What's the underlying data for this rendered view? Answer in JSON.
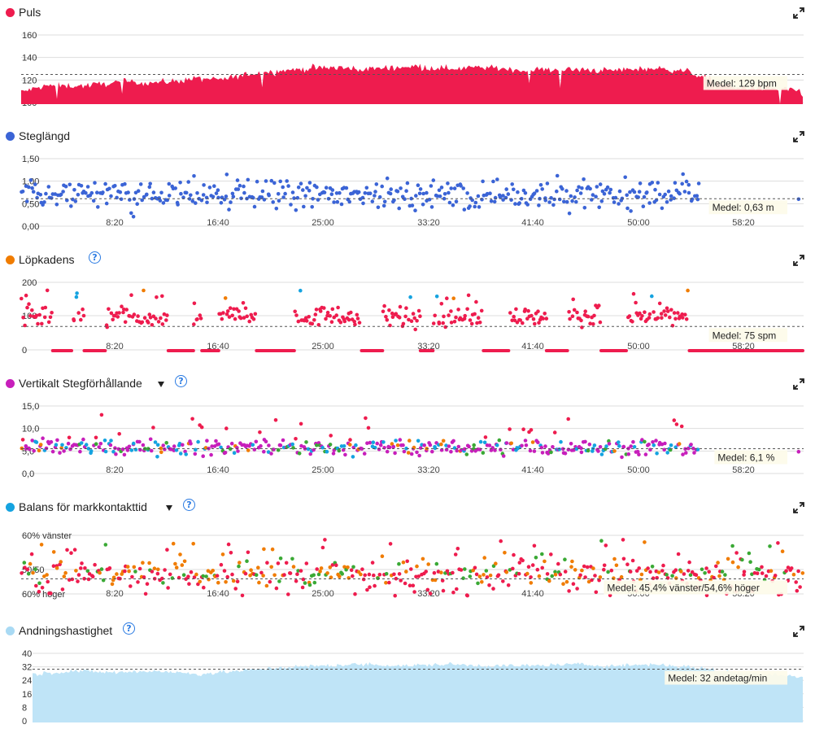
{
  "x_ticks": [
    "8:20",
    "16:40",
    "25:00",
    "33:20",
    "41:40",
    "50:00",
    "58:20"
  ],
  "panels": [
    {
      "id": "puls",
      "title": "Puls",
      "color": "#ee1c4e",
      "has_help": false,
      "has_dropdown": false,
      "y_ticks": [
        "160",
        "140",
        "120",
        "100"
      ],
      "mean_label": "Medel: 129 bpm",
      "chart_data": {
        "type": "area",
        "series": [
          {
            "name": "Puls",
            "color": "#ee1c4e"
          }
        ],
        "ylim": [
          100,
          170
        ],
        "mean": 129,
        "x_range_seconds": [
          0,
          3720
        ],
        "y_profile": [
          [
            0,
            112
          ],
          [
            120,
            118
          ],
          [
            300,
            118
          ],
          [
            500,
            122
          ],
          [
            600,
            121
          ],
          [
            700,
            122
          ],
          [
            840,
            125
          ],
          [
            960,
            124
          ],
          [
            1000,
            126
          ],
          [
            1100,
            130
          ],
          [
            1300,
            134
          ],
          [
            1500,
            136
          ],
          [
            1600,
            134
          ],
          [
            1700,
            135
          ],
          [
            1850,
            137
          ],
          [
            1900,
            137
          ],
          [
            2000,
            135
          ],
          [
            2200,
            136
          ],
          [
            2400,
            133
          ],
          [
            2500,
            134
          ],
          [
            2800,
            133
          ],
          [
            3000,
            135
          ],
          [
            3150,
            133
          ],
          [
            3230,
            128
          ],
          [
            3300,
            123
          ],
          [
            3400,
            116
          ],
          [
            3550,
            116
          ],
          [
            3700,
            114
          ],
          [
            3720,
            106
          ]
        ]
      }
    },
    {
      "id": "steglangd",
      "title": "Steglängd",
      "color": "#3b64d6",
      "has_help": false,
      "has_dropdown": false,
      "y_ticks": [
        "1,50",
        "1,00",
        "0,50",
        "0,00"
      ],
      "mean_label": "Medel: 0,63 m",
      "chart_data": {
        "type": "scatter",
        "series": [
          {
            "name": "Steglängd",
            "color": "#3b64d6"
          }
        ],
        "ylim": [
          0,
          1.55
        ],
        "mean": 0.63,
        "x_range_seconds": [
          0,
          3720
        ],
        "y_center": 0.72,
        "y_spread": 0.2,
        "gaps_seconds": [
          [
            3225,
            3720
          ]
        ]
      }
    },
    {
      "id": "lopkadens",
      "title": "Löpkadens",
      "color": "#f07c00",
      "has_help": true,
      "has_dropdown": false,
      "y_ticks": [
        "200",
        "100",
        "0"
      ],
      "mean_label": "Medel: 75 spm",
      "chart_data": {
        "type": "scatter",
        "series": [
          {
            "name": "main",
            "color": "#ee1c4e"
          },
          {
            "name": "high",
            "color": "#f07c00"
          },
          {
            "name": "fast",
            "color": "#15a3e0"
          }
        ],
        "ylim": [
          0,
          215
        ],
        "mean": 75,
        "x_range_seconds": [
          0,
          3720
        ],
        "y_center": 105,
        "y_spread": 22,
        "zero_segments_seconds": [
          [
            150,
            240
          ],
          [
            300,
            400
          ],
          [
            700,
            820
          ],
          [
            860,
            940
          ],
          [
            1120,
            1300
          ],
          [
            1620,
            1720
          ],
          [
            1900,
            1960
          ],
          [
            2200,
            2320
          ],
          [
            2500,
            2600
          ],
          [
            2760,
            2880
          ],
          [
            3180,
            3720
          ]
        ]
      }
    },
    {
      "id": "vertikalt",
      "title": "Vertikalt Stegförhållande",
      "color": "#c71fbb",
      "has_help": true,
      "has_dropdown": true,
      "y_ticks": [
        "15,0",
        "10,0",
        "5,0",
        "0,0"
      ],
      "mean_label": "Medel: 6,1 %",
      "chart_data": {
        "type": "scatter",
        "series": [
          {
            "name": "magenta",
            "color": "#c71fbb"
          },
          {
            "name": "blue",
            "color": "#15a3e0"
          },
          {
            "name": "green",
            "color": "#3aa935"
          },
          {
            "name": "orange",
            "color": "#f07c00"
          },
          {
            "name": "red",
            "color": "#ee1c4e"
          }
        ],
        "ylim": [
          0,
          16.5
        ],
        "mean": 6.1,
        "x_range_seconds": [
          0,
          3720
        ],
        "y_center": 6.4,
        "y_spread": 1.3,
        "gaps_seconds": [
          [
            3225,
            3720
          ]
        ]
      }
    },
    {
      "id": "balans",
      "title": "Balans för markkontakttid",
      "color": "#15a3e0",
      "has_help": true,
      "has_dropdown": true,
      "y_ticks": [
        "60% vänster",
        "50/50",
        "60% höger"
      ],
      "mean_label": "Medel: 45,4% vänster/54,6% höger",
      "chart_data": {
        "type": "scatter",
        "series": [
          {
            "name": "red",
            "color": "#ee1c4e"
          },
          {
            "name": "orange",
            "color": "#f07c00"
          },
          {
            "name": "green",
            "color": "#3aa935"
          }
        ],
        "ylim": [
          39,
          62
        ],
        "mean": 45.4,
        "x_range_seconds": [
          0,
          3720
        ],
        "y_center": 47.5,
        "y_spread": 3.0
      }
    },
    {
      "id": "andning",
      "title": "Andningshastighet",
      "color": "#a9daf4",
      "has_help": true,
      "has_dropdown": false,
      "y_ticks": [
        "40",
        "32",
        "24",
        "16",
        "8",
        "0"
      ],
      "mean_label": "Medel: 32 andetag/min",
      "chart_data": {
        "type": "area",
        "series": [
          {
            "name": "Andningshastighet",
            "color": "#bfe4f7"
          }
        ],
        "ylim": [
          0,
          43
        ],
        "mean": 32,
        "x_range_seconds": [
          0,
          3720
        ],
        "y_profile": [
          [
            0,
            29
          ],
          [
            200,
            31
          ],
          [
            400,
            30
          ],
          [
            600,
            31
          ],
          [
            800,
            29
          ],
          [
            1000,
            31
          ],
          [
            1200,
            33
          ],
          [
            1400,
            34
          ],
          [
            1600,
            35
          ],
          [
            1800,
            34
          ],
          [
            2000,
            35
          ],
          [
            2200,
            34
          ],
          [
            2400,
            34
          ],
          [
            2600,
            35
          ],
          [
            2800,
            34
          ],
          [
            3000,
            35
          ],
          [
            3200,
            33
          ],
          [
            3400,
            30
          ],
          [
            3600,
            29
          ],
          [
            3720,
            27
          ]
        ]
      }
    }
  ]
}
